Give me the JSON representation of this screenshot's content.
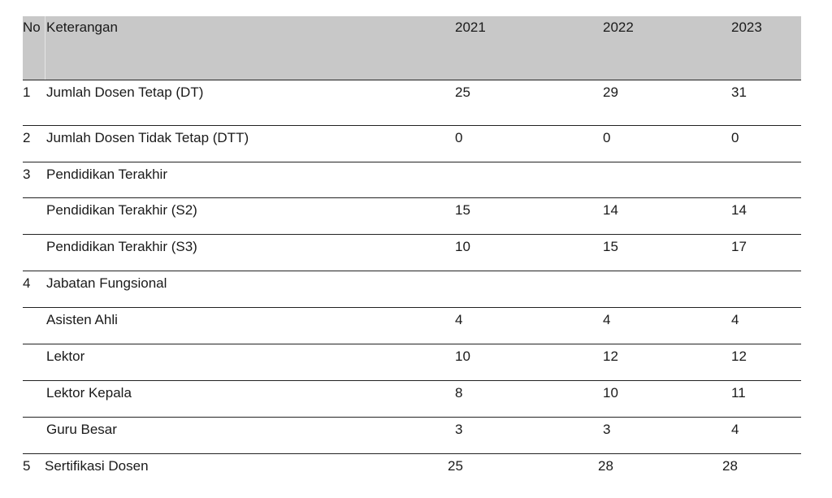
{
  "header": {
    "no": "No",
    "keterangan": "Keterangan",
    "year1": "2021",
    "year2": "2022",
    "year3": "2023"
  },
  "rows": [
    {
      "no": "1",
      "label": "Jumlah Dosen Tetap (DT)",
      "v1": "25",
      "v2": "29",
      "v3": "31"
    },
    {
      "no": "2",
      "label": "Jumlah Dosen Tidak Tetap (DTT)",
      "v1": "0",
      "v2": "0",
      "v3": "0"
    },
    {
      "no": "3",
      "label": "Pendidikan Terakhir",
      "v1": "",
      "v2": "",
      "v3": ""
    },
    {
      "no": "",
      "label": "Pendidikan Terakhir (S2)",
      "v1": "15",
      "v2": "14",
      "v3": "14"
    },
    {
      "no": "",
      "label": "Pendidikan Terakhir (S3)",
      "v1": "10",
      "v2": "15",
      "v3": "17"
    },
    {
      "no": "4",
      "label": "Jabatan Fungsional",
      "v1": "",
      "v2": "",
      "v3": ""
    },
    {
      "no": "",
      "label": "Asisten Ahli",
      "v1": "4",
      "v2": "4",
      "v3": "4"
    },
    {
      "no": "",
      "label": "Lektor",
      "v1": "10",
      "v2": "12",
      "v3": "12"
    },
    {
      "no": "",
      "label": "Lektor Kepala",
      "v1": "8",
      "v2": "10",
      "v3": "11"
    },
    {
      "no": "",
      "label": "Guru Besar",
      "v1": "3",
      "v2": "3",
      "v3": "4"
    },
    {
      "no": "5",
      "label": "Sertifikasi Dosen",
      "v1": "25",
      "v2": "28",
      "v3": "28"
    }
  ]
}
